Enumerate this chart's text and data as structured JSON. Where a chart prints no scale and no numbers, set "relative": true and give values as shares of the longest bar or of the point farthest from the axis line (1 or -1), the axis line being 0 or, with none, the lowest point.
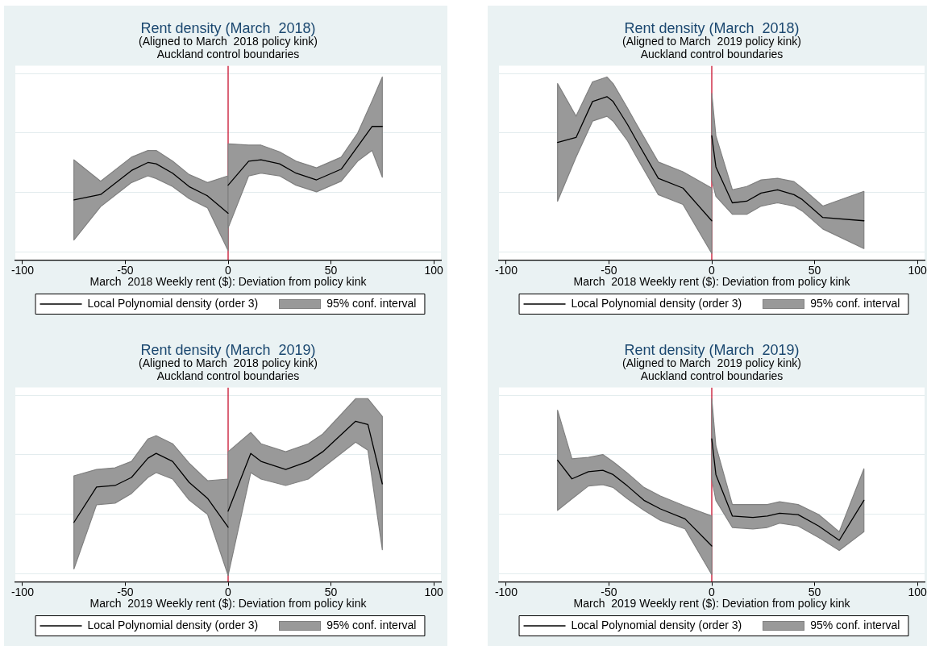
{
  "chart_data": [
    {
      "type": "line",
      "title": "Rent density (March  2018)",
      "subtitle": "(Aligned to March  2018 policy kink)\nAuckland control boundaries",
      "xlabel": "March  2018 Weekly rent ($): Deviation from policy kink",
      "relative": true,
      "x": [
        -75,
        -62,
        -47,
        -39,
        -35,
        -27,
        -19,
        -10,
        0,
        null,
        0,
        10,
        16,
        25,
        33,
        43,
        55,
        63,
        70,
        75
      ],
      "xlim": [
        -103.5,
        103.5
      ],
      "xticks": [
        -100,
        -50,
        0,
        50,
        100
      ],
      "grid": "y",
      "legend": "bottom",
      "marker": "none",
      "line_style": "solid",
      "annotations": [
        "95% conf. interval"
      ],
      "ref_lines": [
        {
          "axis": "x",
          "value": 0,
          "color": "#c8102e"
        }
      ],
      "series": [
        {
          "name": "Local Polynomial density (order 3)",
          "color": "#000000",
          "values": [
            0.45,
            0.49,
            0.67,
            0.73,
            0.72,
            0.65,
            0.55,
            0.48,
            0.35,
            null,
            0.56,
            0.74,
            0.75,
            0.72,
            0.65,
            0.6,
            0.68,
            0.85,
            1.0,
            1.0
          ],
          "lower": [
            0.15,
            0.4,
            0.58,
            0.63,
            0.61,
            0.55,
            0.46,
            0.39,
            0.07,
            null,
            0.24,
            0.63,
            0.65,
            0.63,
            0.56,
            0.51,
            0.59,
            0.74,
            0.82,
            0.62
          ],
          "upper": [
            0.75,
            0.59,
            0.77,
            0.82,
            0.82,
            0.74,
            0.64,
            0.58,
            0.63,
            null,
            0.87,
            0.86,
            0.86,
            0.81,
            0.74,
            0.69,
            0.77,
            0.95,
            1.19,
            1.37
          ]
        }
      ]
    },
    {
      "type": "line",
      "title": "Rent density (March  2018)",
      "subtitle": "(Aligned to March  2019 policy kink)\nAuckland control boundaries",
      "xlabel": "March  2018 Weekly rent ($): Deviation from policy kink",
      "relative": true,
      "x": [
        -75,
        -66,
        -58,
        -51,
        -48,
        -41,
        -37,
        -26,
        -14,
        0,
        null,
        0,
        2,
        10,
        17,
        24,
        32,
        40,
        44,
        54,
        74
      ],
      "xlim": [
        -103.5,
        103.5
      ],
      "xticks": [
        -100,
        -50,
        0,
        50,
        100
      ],
      "grid": "y",
      "legend": "bottom",
      "marker": "none",
      "line_style": "solid",
      "annotations": [
        "95% conf. interval"
      ],
      "ref_lines": [
        {
          "axis": "x",
          "value": 0,
          "color": "#c8102e"
        }
      ],
      "series": [
        {
          "name": "Local Polynomial density (order 3)",
          "color": "#000000",
          "values": [
            0.72,
            0.75,
            0.97,
            1.0,
            0.97,
            0.83,
            0.74,
            0.5,
            0.44,
            0.24,
            null,
            0.76,
            0.57,
            0.35,
            0.36,
            0.41,
            0.43,
            0.4,
            0.37,
            0.26,
            0.24
          ],
          "lower": [
            0.36,
            0.63,
            0.85,
            0.88,
            0.85,
            0.73,
            0.64,
            0.4,
            0.34,
            0.04,
            null,
            0.49,
            0.39,
            0.28,
            0.28,
            0.33,
            0.35,
            0.33,
            0.3,
            0.19,
            0.07
          ],
          "upper": [
            1.08,
            0.88,
            1.09,
            1.12,
            1.08,
            0.93,
            0.84,
            0.6,
            0.54,
            0.44,
            null,
            1.02,
            0.76,
            0.43,
            0.45,
            0.49,
            0.5,
            0.48,
            0.44,
            0.33,
            0.42
          ]
        }
      ]
    },
    {
      "type": "line",
      "title": "Rent density (March  2019)",
      "subtitle": "(Aligned to March  2018 policy kink)\nAuckland control boundaries",
      "xlabel": "March  2019 Weekly rent ($): Deviation from policy kink",
      "relative": true,
      "x": [
        -75,
        -64,
        -55,
        -47,
        -39,
        -35,
        -27,
        -19,
        -10,
        0,
        null,
        0,
        11,
        16,
        28,
        39,
        46,
        62,
        68,
        75
      ],
      "xlim": [
        -103.5,
        103.5
      ],
      "xticks": [
        -100,
        -50,
        0,
        50,
        100
      ],
      "grid": "y",
      "legend": "bottom",
      "marker": "none",
      "line_style": "solid",
      "annotations": [
        "95% conf. interval"
      ],
      "ref_lines": [
        {
          "axis": "x",
          "value": 0,
          "color": "#c8102e"
        }
      ],
      "series": [
        {
          "name": "Local Polynomial density (order 3)",
          "color": "#000000",
          "values": [
            0.37,
            0.59,
            0.6,
            0.65,
            0.77,
            0.8,
            0.75,
            0.62,
            0.52,
            0.34,
            null,
            0.44,
            0.8,
            0.75,
            0.7,
            0.75,
            0.81,
            1.0,
            0.98,
            0.61
          ],
          "lower": [
            0.08,
            0.48,
            0.49,
            0.55,
            0.65,
            0.68,
            0.64,
            0.51,
            0.42,
            0.04,
            null,
            0.04,
            0.68,
            0.64,
            0.6,
            0.64,
            0.71,
            0.87,
            0.82,
            0.2
          ],
          "upper": [
            0.66,
            0.7,
            0.71,
            0.75,
            0.89,
            0.91,
            0.86,
            0.74,
            0.63,
            0.64,
            null,
            0.81,
            0.93,
            0.86,
            0.81,
            0.86,
            0.92,
            1.14,
            1.14,
            1.03
          ]
        }
      ]
    },
    {
      "type": "line",
      "title": "Rent density (March  2019)",
      "subtitle": "(Aligned to March  2019 policy kink)\nAuckland control boundaries",
      "xlabel": "March  2019 Weekly rent ($): Deviation from policy kink",
      "relative": true,
      "x": [
        -75,
        -68,
        -60,
        -53,
        -48,
        -41,
        -33,
        -25,
        -13,
        0,
        null,
        0,
        2,
        10,
        20,
        27,
        33,
        42,
        52,
        62,
        74
      ],
      "xlim": [
        -103.5,
        103.5
      ],
      "xticks": [
        -100,
        -50,
        0,
        50,
        100
      ],
      "grid": "y",
      "legend": "bottom",
      "marker": "none",
      "line_style": "solid",
      "annotations": [
        "95% conf. interval"
      ],
      "ref_lines": [
        {
          "axis": "x",
          "value": 0,
          "color": "#c8102e"
        }
      ],
      "series": [
        {
          "name": "Local Polynomial density (order 3)",
          "color": "#000000",
          "values": [
            0.85,
            0.72,
            0.77,
            0.78,
            0.75,
            0.67,
            0.57,
            0.51,
            0.44,
            0.25,
            null,
            1.0,
            0.75,
            0.46,
            0.45,
            0.46,
            0.48,
            0.47,
            0.39,
            0.29,
            0.57
          ],
          "lower": [
            0.5,
            0.58,
            0.67,
            0.68,
            0.66,
            0.58,
            0.5,
            0.43,
            0.37,
            0.05,
            null,
            0.72,
            0.57,
            0.38,
            0.37,
            0.38,
            0.41,
            0.39,
            0.31,
            0.22,
            0.35
          ],
          "upper": [
            1.2,
            0.86,
            0.87,
            0.89,
            0.84,
            0.76,
            0.66,
            0.6,
            0.53,
            0.46,
            null,
            1.28,
            0.95,
            0.54,
            0.54,
            0.54,
            0.56,
            0.54,
            0.47,
            0.35,
            0.79
          ]
        }
      ]
    }
  ]
}
